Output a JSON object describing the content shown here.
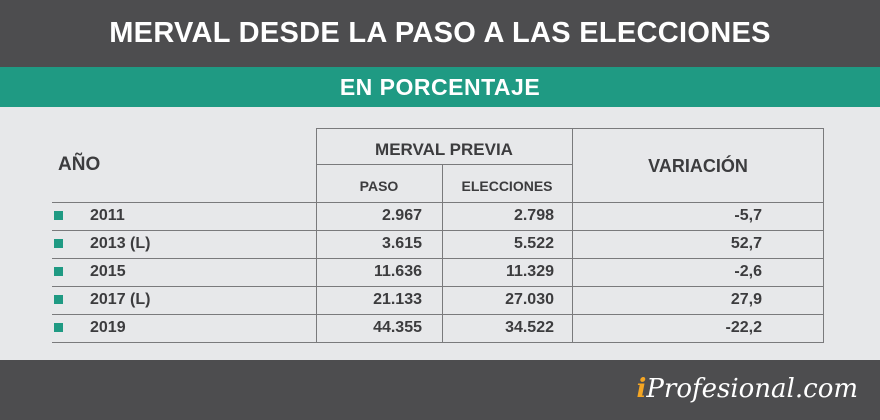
{
  "title": "MERVAL DESDE LA PASO A LAS ELECCIONES",
  "subtitle": "EN PORCENTAJE",
  "brand": {
    "accent": "#1f9a83",
    "dark": "#4d4d4f",
    "logo_prefix": "i",
    "logo_rest": "Profesional.com"
  },
  "chart_data": {
    "type": "table",
    "columns": {
      "year": "AÑO",
      "group": "MERVAL PREVIA",
      "paso": "PASO",
      "elecciones": "ELECCIONES",
      "variacion": "VARIACIÓN"
    },
    "rows": [
      {
        "year": "2011",
        "paso": "2.967",
        "elecciones": "2.798",
        "variacion": "-5,7"
      },
      {
        "year": "2013 (L)",
        "paso": "3.615",
        "elecciones": "5.522",
        "variacion": "52,7"
      },
      {
        "year": "2015",
        "paso": "11.636",
        "elecciones": "11.329",
        "variacion": "-2,6"
      },
      {
        "year": "2017 (L)",
        "paso": "21.133",
        "elecciones": "27.030",
        "variacion": "27,9"
      },
      {
        "year": "2019",
        "paso": "44.355",
        "elecciones": "34.522",
        "variacion": "-22,2"
      }
    ]
  }
}
